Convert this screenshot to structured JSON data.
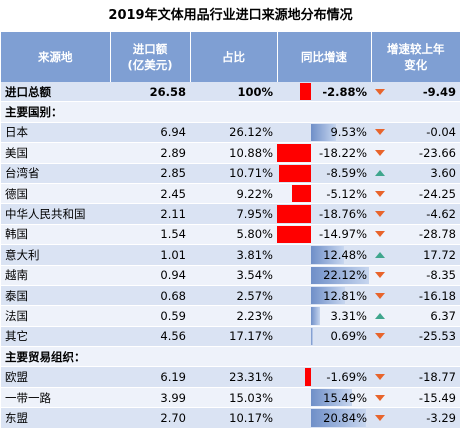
{
  "title": "2019年文体用品行业进口来源地分布情况",
  "colors": {
    "header_bg": "#7f9fd3",
    "bar_negative": "#ff0000",
    "bar_positive": "#6f8fc8",
    "arrow_down": "#e8642b",
    "arrow_up": "#3fa68d"
  },
  "headers": [
    "来源地",
    "进口额\n(亿美元)",
    "占比",
    "同比增速",
    "增速较上年\n变化"
  ],
  "scale_max": 22.12,
  "rows": [
    {
      "kind": "total",
      "name": "进口总额",
      "amount": "26.58",
      "share": "100%",
      "yoy": -2.88,
      "yoy_text": "-2.88%",
      "delta_dir": "down",
      "delta": "-9.49"
    },
    {
      "kind": "section",
      "name": "主要国别："
    },
    {
      "kind": "data",
      "name": "日本",
      "amount": "6.94",
      "share": "26.12%",
      "yoy": 9.53,
      "yoy_text": "9.53%",
      "delta_dir": "down",
      "delta": "-0.04"
    },
    {
      "kind": "data",
      "name": "美国",
      "amount": "2.89",
      "share": "10.88%",
      "yoy": -18.22,
      "yoy_text": "-18.22%",
      "delta_dir": "down",
      "delta": "-23.66"
    },
    {
      "kind": "data",
      "name": "台湾省",
      "amount": "2.85",
      "share": "10.71%",
      "yoy": -8.59,
      "yoy_text": "-8.59%",
      "delta_dir": "up",
      "delta": "3.60"
    },
    {
      "kind": "data",
      "name": "德国",
      "amount": "2.45",
      "share": "9.22%",
      "yoy": -5.12,
      "yoy_text": "-5.12%",
      "delta_dir": "down",
      "delta": "-24.25"
    },
    {
      "kind": "data",
      "name": "中华人民共和国",
      "amount": "2.11",
      "share": "7.95%",
      "yoy": -18.76,
      "yoy_text": "-18.76%",
      "delta_dir": "down",
      "delta": "-4.62"
    },
    {
      "kind": "data",
      "name": "韩国",
      "amount": "1.54",
      "share": "5.80%",
      "yoy": -14.97,
      "yoy_text": "-14.97%",
      "delta_dir": "down",
      "delta": "-28.78"
    },
    {
      "kind": "data",
      "name": "意大利",
      "amount": "1.01",
      "share": "3.81%",
      "yoy": 12.48,
      "yoy_text": "12.48%",
      "delta_dir": "up",
      "delta": "17.72"
    },
    {
      "kind": "data",
      "name": "越南",
      "amount": "0.94",
      "share": "3.54%",
      "yoy": 22.12,
      "yoy_text": "22.12%",
      "delta_dir": "down",
      "delta": "-8.35"
    },
    {
      "kind": "data",
      "name": "泰国",
      "amount": "0.68",
      "share": "2.57%",
      "yoy": 12.81,
      "yoy_text": "12.81%",
      "delta_dir": "down",
      "delta": "-16.18"
    },
    {
      "kind": "data",
      "name": "法国",
      "amount": "0.59",
      "share": "2.23%",
      "yoy": 3.31,
      "yoy_text": "3.31%",
      "delta_dir": "up",
      "delta": "6.37"
    },
    {
      "kind": "data",
      "name": "其它",
      "amount": "4.56",
      "share": "17.17%",
      "yoy": 0.69,
      "yoy_text": "0.69%",
      "delta_dir": "down",
      "delta": "-25.53"
    },
    {
      "kind": "section",
      "name": "主要贸易组织："
    },
    {
      "kind": "data",
      "name": "欧盟",
      "amount": "6.19",
      "share": "23.31%",
      "yoy": -1.69,
      "yoy_text": "-1.69%",
      "delta_dir": "down",
      "delta": "-18.77"
    },
    {
      "kind": "data",
      "name": "一带一路",
      "amount": "3.99",
      "share": "15.03%",
      "yoy": 15.49,
      "yoy_text": "15.49%",
      "delta_dir": "down",
      "delta": "-15.49"
    },
    {
      "kind": "data",
      "name": "东盟",
      "amount": "2.70",
      "share": "10.17%",
      "yoy": 20.84,
      "yoy_text": "20.84%",
      "delta_dir": "down",
      "delta": "-3.29"
    }
  ]
}
